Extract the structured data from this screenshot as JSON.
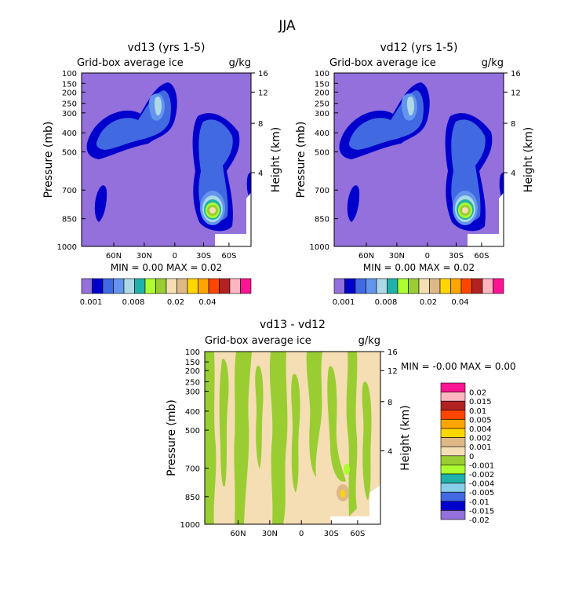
{
  "figure": {
    "title": "JJA"
  },
  "panels": [
    {
      "title": "vd13 (yrs 1-5)",
      "variable": "Grid-box average ice",
      "units": "g/kg",
      "stats": "MIN =   0.00   MAX =   0.02"
    },
    {
      "title": "vd12 (yrs 1-5)",
      "variable": "Grid-box average ice",
      "units": "g/kg",
      "stats": "MIN =   0.00   MAX =   0.02"
    },
    {
      "title": "vd13 - vd12",
      "variable": "Grid-box average ice",
      "units": "g/kg",
      "stats": "MIN =  -0.00   MAX =   0.00"
    }
  ],
  "colorbars": {
    "horizontal_labels": [
      "0.001",
      "0.008",
      "0.02",
      "0.04"
    ],
    "horizontal_colors": [
      "#9370db",
      "#0000cd",
      "#4169e1",
      "#6495ed",
      "#add8e6",
      "#20b2aa",
      "#adff2f",
      "#9acd32",
      "#f5deb3",
      "#deb887",
      "#ffd700",
      "#ffa500",
      "#ff4500",
      "#b22222",
      "#ffb6c1",
      "#ff1493"
    ],
    "vertical_labels": [
      "0.02",
      "0.015",
      "0.01",
      "0.005",
      "0.004",
      "0.002",
      "0.001",
      "0",
      "-0.001",
      "-0.002",
      "-0.004",
      "-0.005",
      "-0.01",
      "-0.015",
      "-0.02"
    ],
    "vertical_colors": [
      "#ff1493",
      "#ffb6c1",
      "#b22222",
      "#ff4500",
      "#ffa500",
      "#ffd700",
      "#deb887",
      "#f5deb3",
      "#9acd32",
      "#adff2f",
      "#20b2aa",
      "#87ceeb",
      "#4169e1",
      "#0000cd",
      "#9370db"
    ]
  },
  "chart_data": [
    {
      "type": "heatmap",
      "title": "vd13 (yrs 1-5)",
      "subtitle": "Grid-box average ice",
      "units": "g/kg",
      "xlabel": "",
      "ylabel": "Pressure (mb)",
      "y2label": "Height (km)",
      "xticks": [
        "60N",
        "30N",
        "0",
        "30S",
        "60S"
      ],
      "yticks": [
        "100",
        "150",
        "200",
        "250",
        "300",
        "400",
        "500",
        "700",
        "850",
        "1000"
      ],
      "y2ticks": [
        "16",
        "12",
        "8",
        "4"
      ],
      "ylim": [
        1000,
        100
      ],
      "min": 0.0,
      "max": 0.02
    },
    {
      "type": "heatmap",
      "title": "vd12 (yrs 1-5)",
      "subtitle": "Grid-box average ice",
      "units": "g/kg",
      "xlabel": "",
      "ylabel": "Pressure (mb)",
      "y2label": "Height (km)",
      "xticks": [
        "60N",
        "30N",
        "0",
        "30S",
        "60S"
      ],
      "yticks": [
        "100",
        "150",
        "200",
        "250",
        "300",
        "400",
        "500",
        "700",
        "850",
        "1000"
      ],
      "y2ticks": [
        "16",
        "12",
        "8",
        "4"
      ],
      "ylim": [
        1000,
        100
      ],
      "min": 0.0,
      "max": 0.02
    },
    {
      "type": "heatmap",
      "title": "vd13 - vd12",
      "subtitle": "Grid-box average ice",
      "units": "g/kg",
      "xlabel": "",
      "ylabel": "Pressure (mb)",
      "y2label": "Height (km)",
      "xticks": [
        "60N",
        "30N",
        "0",
        "30S",
        "60S"
      ],
      "yticks": [
        "100",
        "150",
        "200",
        "250",
        "300",
        "400",
        "500",
        "700",
        "850",
        "1000"
      ],
      "y2ticks": [
        "16",
        "12",
        "8",
        "4"
      ],
      "ylim": [
        1000,
        100
      ],
      "min": -0.0,
      "max": 0.0
    }
  ]
}
